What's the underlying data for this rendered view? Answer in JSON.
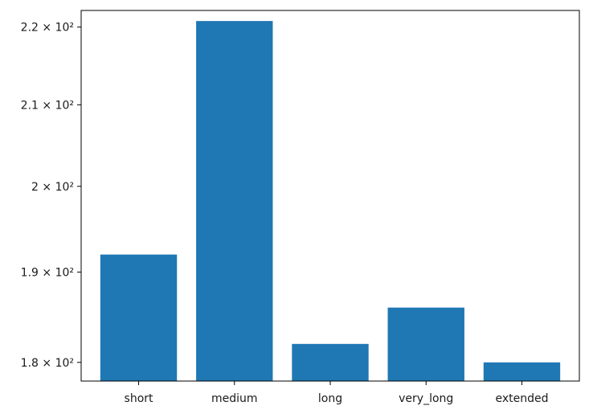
{
  "chart_data": {
    "type": "bar",
    "categories": [
      "short",
      "medium",
      "long",
      "very_long",
      "extended"
    ],
    "values": [
      192,
      220.8,
      182,
      186,
      180
    ],
    "title": "",
    "xlabel": "",
    "ylabel": "",
    "y_scale": "log",
    "ylim": [
      178,
      222.2
    ],
    "y_ticks": [
      {
        "value": 180,
        "label": "1.8 × 10²"
      },
      {
        "value": 190,
        "label": "1.9 × 10²"
      },
      {
        "value": 200,
        "label": "2 × 10²"
      },
      {
        "value": 210,
        "label": "2.1 × 10²"
      },
      {
        "value": 220,
        "label": "2.2 × 10²"
      }
    ],
    "bar_color": "#1f77b4",
    "grid": false,
    "legend": "none"
  }
}
